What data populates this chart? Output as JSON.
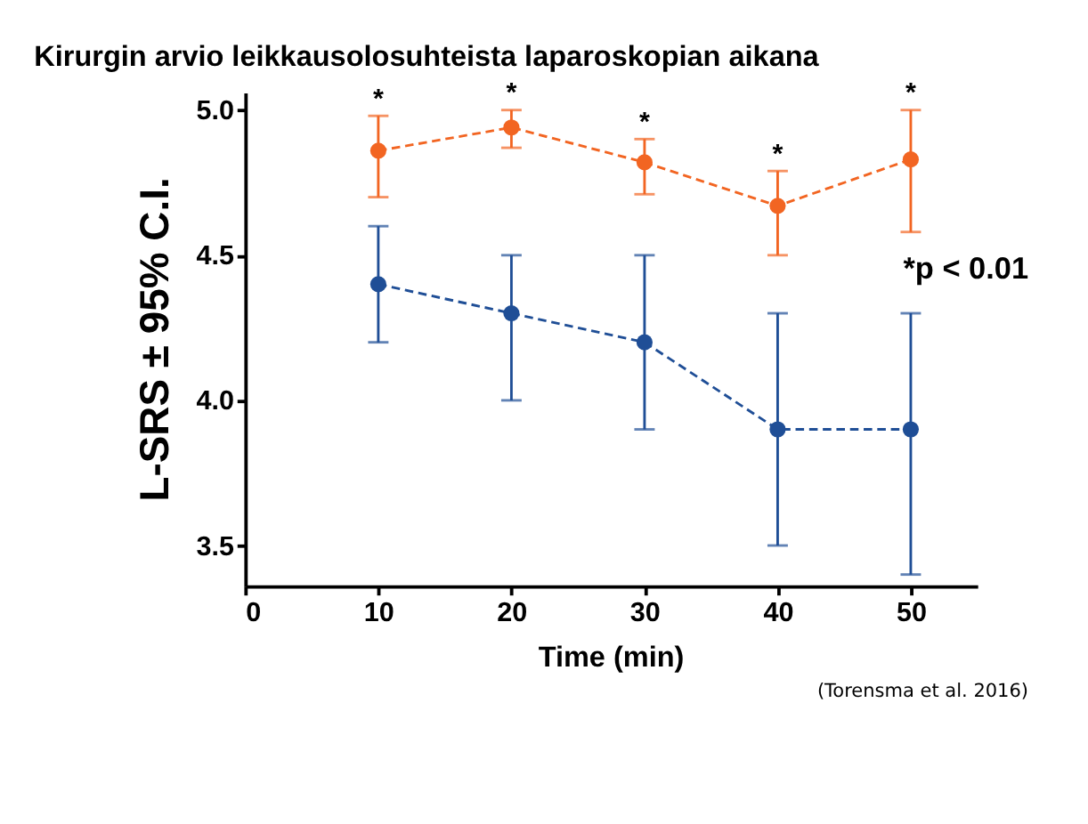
{
  "chart_data": {
    "type": "line",
    "title": "Kirurgin arvio leikkausolosuhteista laparoskopian aikana",
    "xlabel": "Time (min)",
    "ylabel": "L-SRS ± 95% C.I.",
    "x": [
      10,
      20,
      30,
      40,
      50
    ],
    "series": [
      {
        "color": "#f26522",
        "values": [
          4.86,
          4.94,
          4.82,
          4.67,
          4.83
        ],
        "errors": [
          [
            4.7,
            4.98
          ],
          [
            4.87,
            5.0
          ],
          [
            4.71,
            4.9
          ],
          [
            4.5,
            4.79
          ],
          [
            4.58,
            5.0
          ]
        ]
      },
      {
        "color": "#1f4e96",
        "values": [
          4.4,
          4.3,
          4.2,
          3.9,
          3.9
        ],
        "errors": [
          [
            4.2,
            4.6
          ],
          [
            4.0,
            4.5
          ],
          [
            3.9,
            4.5
          ],
          [
            3.5,
            4.3
          ],
          [
            3.4,
            4.3
          ]
        ]
      }
    ],
    "xlim": [
      0,
      55
    ],
    "xticks": [
      0,
      10,
      20,
      30,
      40,
      50
    ],
    "ylim": [
      3.36,
      5.06
    ],
    "yticks": [
      {
        "value": 3.5,
        "label": "3.5"
      },
      {
        "value": 4,
        "label": "4.0"
      },
      {
        "value": 4.5,
        "label": "4.5"
      },
      {
        "value": 5,
        "label": "5.0"
      }
    ],
    "annotations": [
      {
        "text": "*",
        "x": 10,
        "y": 4.98
      },
      {
        "text": "*",
        "x": 20,
        "y": 5.0
      },
      {
        "text": "*",
        "x": 30,
        "y": 4.9
      },
      {
        "text": "*",
        "x": 40,
        "y": 4.79
      },
      {
        "text": "*",
        "x": 50,
        "y": 5.0
      },
      "*p < 0.01",
      "(Torensma et al. 2016)"
    ],
    "marker": "circle",
    "line_style": "dashed",
    "grid": false
  }
}
